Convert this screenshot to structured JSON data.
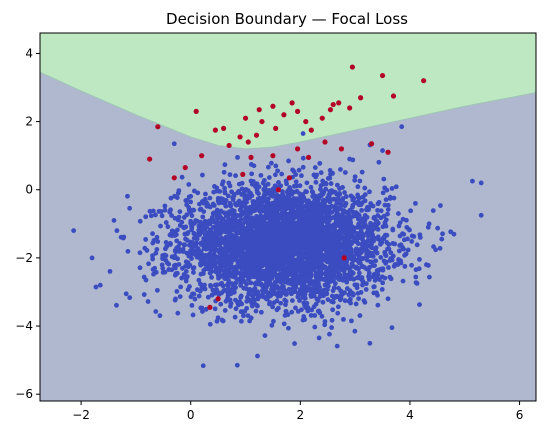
{
  "chart_data": {
    "type": "scatter",
    "title": "Decision Boundary — Focal Loss",
    "xlabel": "",
    "ylabel": "",
    "xlim": [
      -2.75,
      6.3
    ],
    "ylim": [
      -6.2,
      4.6
    ],
    "x_ticks": [
      -2,
      0,
      2,
      4,
      6
    ],
    "y_ticks": [
      -6,
      -4,
      -2,
      0,
      2,
      4
    ],
    "x_tick_labels": [
      "−2",
      "0",
      "2",
      "4",
      "6"
    ],
    "y_tick_labels": [
      "−6",
      "−4",
      "−2",
      "0",
      "2",
      "4"
    ],
    "grid": false,
    "regions": [
      {
        "class": 0,
        "color": "#b0b8d0"
      },
      {
        "class": 1,
        "color": "#bde8c2"
      }
    ],
    "decision_boundary": {
      "x": [
        -2.75,
        -2.0,
        -1.0,
        0.0,
        0.5,
        1.0,
        1.5,
        2.0,
        3.0,
        4.0,
        5.0,
        6.3
      ],
      "y": [
        3.45,
        2.9,
        2.2,
        1.55,
        1.3,
        1.2,
        1.25,
        1.4,
        1.75,
        2.1,
        2.45,
        2.85
      ]
    },
    "series": [
      {
        "class": 0,
        "color": "#3b4cc0",
        "cluster": {
          "center": [
            1.7,
            -1.6
          ],
          "std": [
            0.95,
            0.85
          ],
          "count": 4200
        },
        "outliers": [
          {
            "x": 5.3,
            "y": 0.2
          },
          {
            "x": 5.3,
            "y": -0.75
          },
          {
            "x": 4.3,
            "y": -2.2
          },
          {
            "x": 4.35,
            "y": -1.0
          },
          {
            "x": -1.65,
            "y": -2.8
          },
          {
            "x": -1.8,
            "y": -2.0
          },
          {
            "x": 0.85,
            "y": -5.15
          },
          {
            "x": 2.9,
            "y": 0.9
          },
          {
            "x": 4.1,
            "y": -0.4
          },
          {
            "x": 3.85,
            "y": 1.85
          },
          {
            "x": 3.5,
            "y": 1.15
          },
          {
            "x": 2.05,
            "y": 1.65
          },
          {
            "x": -0.3,
            "y": 1.35
          },
          {
            "x": -1.4,
            "y": -0.9
          },
          {
            "x": 3.6,
            "y": -3.2
          }
        ]
      },
      {
        "class": 1,
        "color": "#b40426",
        "points": [
          {
            "x": 2.95,
            "y": 3.6
          },
          {
            "x": 3.5,
            "y": 3.35
          },
          {
            "x": 4.25,
            "y": 3.2
          },
          {
            "x": 3.7,
            "y": 2.75
          },
          {
            "x": 3.1,
            "y": 2.7
          },
          {
            "x": 2.6,
            "y": 2.5
          },
          {
            "x": 2.7,
            "y": 2.55
          },
          {
            "x": 2.9,
            "y": 2.4
          },
          {
            "x": 2.55,
            "y": 2.35
          },
          {
            "x": 2.4,
            "y": 2.1
          },
          {
            "x": 2.1,
            "y": 2.0
          },
          {
            "x": 1.85,
            "y": 2.55
          },
          {
            "x": 1.95,
            "y": 2.3
          },
          {
            "x": 1.7,
            "y": 2.2
          },
          {
            "x": 1.5,
            "y": 2.45
          },
          {
            "x": 1.25,
            "y": 2.35
          },
          {
            "x": 1.3,
            "y": 2.0
          },
          {
            "x": 1.0,
            "y": 2.1
          },
          {
            "x": 0.6,
            "y": 1.8
          },
          {
            "x": 0.1,
            "y": 2.3
          },
          {
            "x": -0.6,
            "y": 1.85
          },
          {
            "x": 0.45,
            "y": 1.75
          },
          {
            "x": 0.9,
            "y": 1.55
          },
          {
            "x": 1.2,
            "y": 1.6
          },
          {
            "x": 1.55,
            "y": 1.8
          },
          {
            "x": 2.2,
            "y": 1.75
          },
          {
            "x": 2.45,
            "y": 1.4
          },
          {
            "x": 2.75,
            "y": 1.2
          },
          {
            "x": 3.3,
            "y": 1.35
          },
          {
            "x": 3.6,
            "y": 1.1
          },
          {
            "x": 1.05,
            "y": 1.4
          },
          {
            "x": 0.7,
            "y": 1.3
          },
          {
            "x": 0.2,
            "y": 1.0
          },
          {
            "x": -0.75,
            "y": 0.9
          },
          {
            "x": 1.1,
            "y": 0.95
          },
          {
            "x": 1.95,
            "y": 1.2
          },
          {
            "x": 2.15,
            "y": 0.95
          },
          {
            "x": 0.95,
            "y": 0.45
          },
          {
            "x": 1.5,
            "y": 1.0
          },
          {
            "x": -0.1,
            "y": 0.65
          },
          {
            "x": -0.3,
            "y": 0.35
          },
          {
            "x": 1.6,
            "y": 0.0
          },
          {
            "x": 2.8,
            "y": -2.0
          },
          {
            "x": 0.5,
            "y": -3.2
          },
          {
            "x": 0.35,
            "y": -3.45
          },
          {
            "x": 1.8,
            "y": 0.35
          }
        ]
      }
    ]
  }
}
